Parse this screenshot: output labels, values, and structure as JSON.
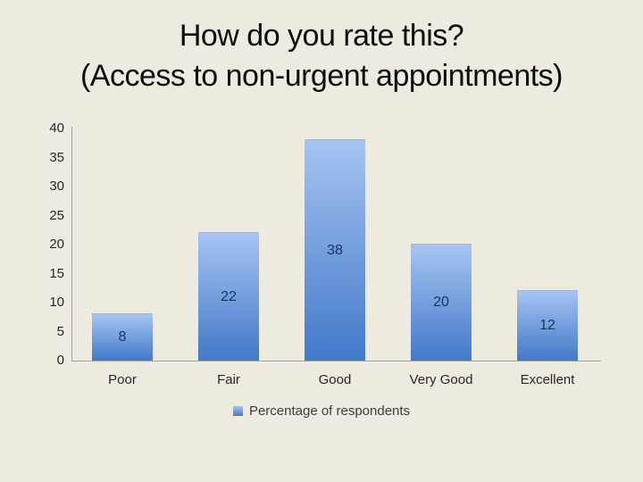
{
  "slide": {
    "title_line1": "How do you rate this?",
    "title_line2": "(Access to non-urgent appointments)"
  },
  "chart_data": {
    "type": "bar",
    "title": "How do you rate this? (Access to non-urgent appointments)",
    "categories": [
      "Poor",
      "Fair",
      "Good",
      "Very Good",
      "Excellent"
    ],
    "values": [
      8,
      22,
      38,
      20,
      12
    ],
    "series_name": "Percentage of respondents",
    "xlabel": "",
    "ylabel": "",
    "ylim": [
      0,
      40
    ],
    "yticks": [
      0,
      5,
      10,
      15,
      20,
      25,
      30,
      35,
      40
    ],
    "grid": false,
    "legend_position": "bottom-center",
    "data_labels": "inside-center",
    "colors": {
      "background": "#edebe0",
      "bar_gradient_top": "#a6c4f1",
      "bar_gradient_bottom": "#4279ca",
      "axis_line": "#a6a49b",
      "data_label_text": "#17365d",
      "tick_text": "#262626",
      "legend_text": "#3d3d3d",
      "title_text": "#0d0d0d"
    }
  }
}
